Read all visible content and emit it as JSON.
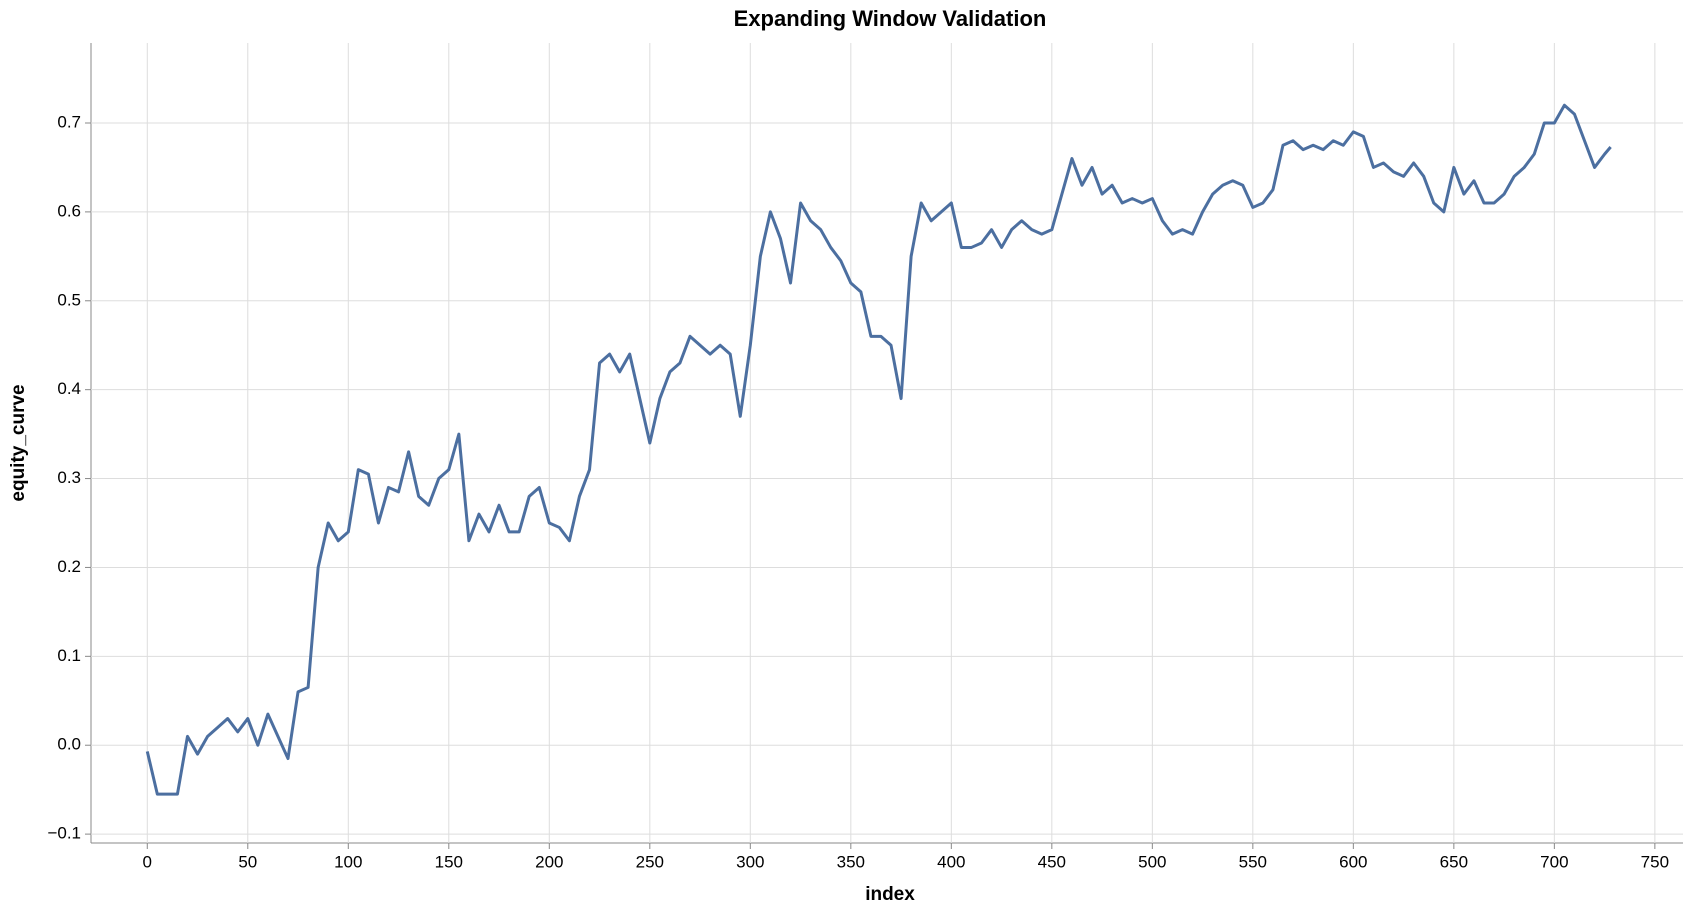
{
  "chart_data": {
    "type": "line",
    "title": "Expanding Window Validation",
    "x_label": "index",
    "y_label": "equity_curve",
    "xlim": [
      -28,
      764
    ],
    "ylim": [
      -0.11,
      0.79
    ],
    "xticks": [
      0,
      50,
      100,
      150,
      200,
      250,
      300,
      350,
      400,
      450,
      500,
      550,
      600,
      650,
      700,
      750
    ],
    "yticks": [
      {
        "value": -0.1,
        "label": "−0.1"
      },
      {
        "value": 0,
        "label": "0.0"
      },
      0.1,
      0.2,
      0.3,
      0.4,
      0.5,
      0.6,
      0.7
    ],
    "grid": true,
    "series": [
      {
        "name": "equity_curve",
        "color": "#4c6fa0",
        "x": [
          0,
          5,
          10,
          15,
          20,
          25,
          30,
          35,
          40,
          45,
          50,
          55,
          60,
          65,
          70,
          75,
          80,
          85,
          90,
          95,
          100,
          105,
          110,
          115,
          120,
          125,
          130,
          135,
          140,
          145,
          150,
          155,
          160,
          165,
          170,
          175,
          180,
          185,
          190,
          195,
          200,
          205,
          210,
          215,
          220,
          225,
          230,
          235,
          240,
          245,
          250,
          255,
          260,
          265,
          270,
          275,
          280,
          285,
          290,
          295,
          300,
          305,
          310,
          315,
          320,
          325,
          330,
          335,
          340,
          345,
          350,
          355,
          360,
          365,
          370,
          375,
          380,
          385,
          390,
          395,
          400,
          405,
          410,
          415,
          420,
          425,
          430,
          435,
          440,
          445,
          450,
          455,
          460,
          465,
          470,
          475,
          480,
          485,
          490,
          495,
          500,
          505,
          510,
          515,
          520,
          525,
          530,
          535,
          540,
          545,
          550,
          555,
          560,
          565,
          570,
          575,
          580,
          585,
          590,
          595,
          600,
          605,
          610,
          615,
          620,
          625,
          630,
          635,
          640,
          645,
          650,
          655,
          660,
          665,
          670,
          675,
          680,
          685,
          690,
          695,
          700,
          705,
          710,
          715,
          720,
          725,
          728
        ],
        "values": [
          -0.007,
          -0.055,
          -0.055,
          -0.055,
          0.01,
          -0.01,
          0.01,
          0.02,
          0.03,
          0.015,
          0.03,
          0.0,
          0.035,
          0.01,
          -0.015,
          0.06,
          0.065,
          0.2,
          0.25,
          0.23,
          0.24,
          0.31,
          0.305,
          0.25,
          0.29,
          0.285,
          0.33,
          0.28,
          0.27,
          0.3,
          0.31,
          0.35,
          0.23,
          0.26,
          0.24,
          0.27,
          0.24,
          0.24,
          0.28,
          0.29,
          0.25,
          0.245,
          0.23,
          0.28,
          0.31,
          0.43,
          0.44,
          0.42,
          0.44,
          0.39,
          0.34,
          0.39,
          0.42,
          0.43,
          0.46,
          0.45,
          0.44,
          0.45,
          0.44,
          0.37,
          0.45,
          0.55,
          0.6,
          0.57,
          0.52,
          0.61,
          0.59,
          0.58,
          0.56,
          0.545,
          0.52,
          0.51,
          0.46,
          0.46,
          0.45,
          0.39,
          0.55,
          0.61,
          0.59,
          0.6,
          0.61,
          0.56,
          0.56,
          0.565,
          0.58,
          0.56,
          0.58,
          0.59,
          0.58,
          0.575,
          0.58,
          0.62,
          0.66,
          0.63,
          0.65,
          0.62,
          0.63,
          0.61,
          0.615,
          0.61,
          0.615,
          0.59,
          0.575,
          0.58,
          0.575,
          0.6,
          0.62,
          0.63,
          0.635,
          0.63,
          0.605,
          0.61,
          0.625,
          0.675,
          0.68,
          0.67,
          0.675,
          0.67,
          0.68,
          0.675,
          0.69,
          0.685,
          0.65,
          0.655,
          0.645,
          0.64,
          0.655,
          0.64,
          0.61,
          0.6,
          0.65,
          0.62,
          0.635,
          0.61,
          0.61,
          0.62,
          0.64,
          0.65,
          0.665,
          0.7,
          0.7,
          0.72,
          0.71,
          0.68,
          0.65,
          0.665,
          0.673
        ]
      }
    ]
  }
}
